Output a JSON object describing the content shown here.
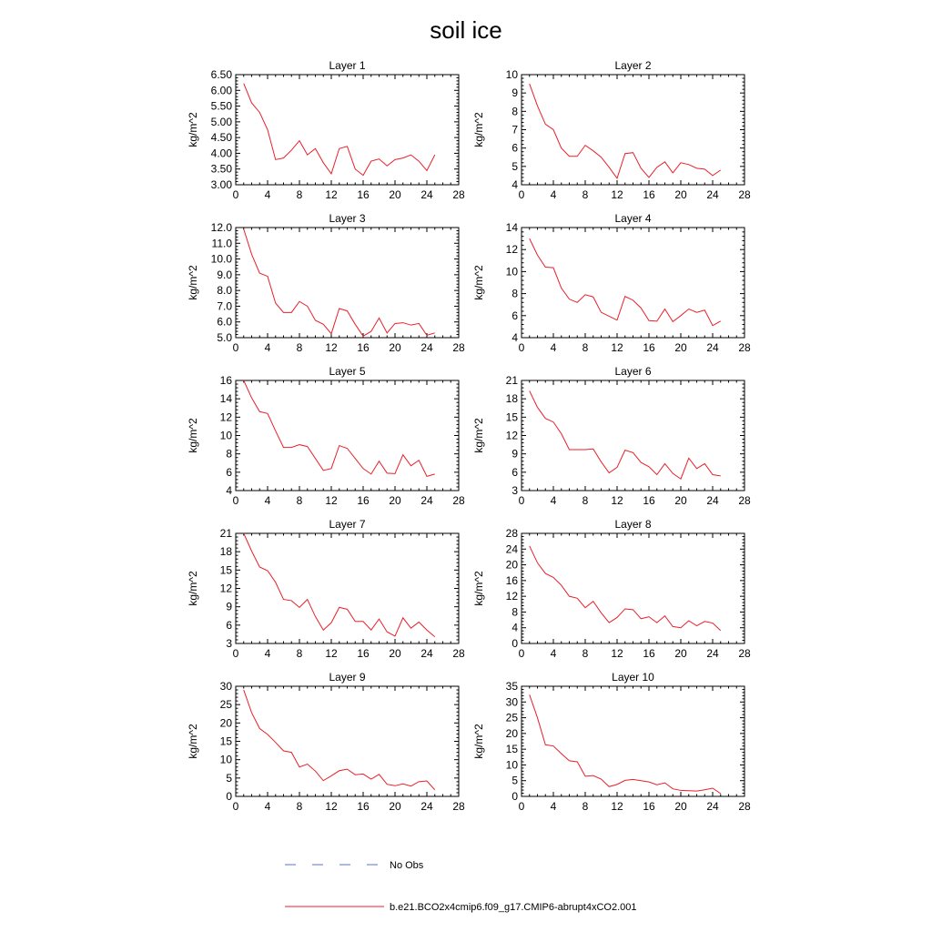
{
  "title": "soil ice",
  "legend": [
    {
      "label": "No Obs",
      "color": "#5a6fd6",
      "style": "dashed"
    },
    {
      "label": "b.e21.BCO2x4cmip6.f09_g17.CMIP6-abrupt4xCO2.001",
      "color": "#e8202a",
      "style": "solid"
    }
  ],
  "chart_data": [
    {
      "type": "line",
      "title": "Layer 1",
      "ylabel": "kg/m^2",
      "xlim": [
        0,
        28
      ],
      "xticks": [
        0,
        4,
        8,
        12,
        16,
        20,
        24,
        28
      ],
      "ylim": [
        3.0,
        6.5
      ],
      "yticks": [
        "3.00",
        "3.50",
        "4.00",
        "4.50",
        "5.00",
        "5.50",
        "6.00",
        "6.50"
      ],
      "series": [
        {
          "color": "#e8202a",
          "x": [
            1,
            2,
            3,
            4,
            5,
            6,
            7,
            8,
            9,
            10,
            11,
            12,
            13,
            14,
            15,
            16,
            17,
            18,
            19,
            20,
            21,
            22,
            23,
            24,
            25
          ],
          "y": [
            6.22,
            5.6,
            5.3,
            4.75,
            3.8,
            3.85,
            4.1,
            4.4,
            3.95,
            4.15,
            3.7,
            3.35,
            4.15,
            4.22,
            3.5,
            3.3,
            3.75,
            3.82,
            3.6,
            3.8,
            3.85,
            3.95,
            3.75,
            3.45,
            3.95
          ]
        }
      ]
    },
    {
      "type": "line",
      "title": "Layer 2",
      "ylabel": "kg/m^2",
      "xlim": [
        0,
        28
      ],
      "xticks": [
        0,
        4,
        8,
        12,
        16,
        20,
        24,
        28
      ],
      "ylim": [
        4,
        10
      ],
      "yticks": [
        "4",
        "5",
        "6",
        "7",
        "8",
        "9",
        "10"
      ],
      "series": [
        {
          "color": "#e8202a",
          "x": [
            1,
            2,
            3,
            4,
            5,
            6,
            7,
            8,
            9,
            10,
            11,
            12,
            13,
            14,
            15,
            16,
            17,
            18,
            19,
            20,
            21,
            22,
            23,
            24,
            25
          ],
          "y": [
            9.5,
            8.3,
            7.3,
            7.0,
            6.0,
            5.55,
            5.55,
            6.15,
            5.85,
            5.5,
            4.95,
            4.35,
            5.7,
            5.75,
            4.9,
            4.4,
            4.95,
            5.25,
            4.65,
            5.2,
            5.1,
            4.9,
            4.85,
            4.5,
            4.8
          ]
        }
      ]
    },
    {
      "type": "line",
      "title": "Layer 3",
      "ylabel": "kg/m^2",
      "xlim": [
        0,
        28
      ],
      "xticks": [
        0,
        4,
        8,
        12,
        16,
        20,
        24,
        28
      ],
      "ylim": [
        5.0,
        12.0
      ],
      "yticks": [
        "5.0",
        "6.0",
        "7.0",
        "8.0",
        "9.0",
        "10.0",
        "11.0",
        "12.0"
      ],
      "series": [
        {
          "color": "#e8202a",
          "x": [
            1,
            2,
            3,
            4,
            5,
            6,
            7,
            8,
            9,
            10,
            11,
            12,
            13,
            14,
            15,
            16,
            17,
            18,
            19,
            20,
            21,
            22,
            23,
            24,
            25
          ],
          "y": [
            11.9,
            10.3,
            9.1,
            8.9,
            7.2,
            6.6,
            6.6,
            7.3,
            7.0,
            6.1,
            5.85,
            5.25,
            6.85,
            6.7,
            5.85,
            5.1,
            5.4,
            6.25,
            5.3,
            5.9,
            5.95,
            5.8,
            5.9,
            5.15,
            5.3
          ]
        }
      ]
    },
    {
      "type": "line",
      "title": "Layer 4",
      "ylabel": "kg/m^2",
      "xlim": [
        0,
        28
      ],
      "xticks": [
        0,
        4,
        8,
        12,
        16,
        20,
        24,
        28
      ],
      "ylim": [
        4,
        14
      ],
      "yticks": [
        "4",
        "6",
        "8",
        "10",
        "12",
        "14"
      ],
      "series": [
        {
          "color": "#e8202a",
          "x": [
            1,
            2,
            3,
            4,
            5,
            6,
            7,
            8,
            9,
            10,
            11,
            12,
            13,
            14,
            15,
            16,
            17,
            18,
            19,
            20,
            21,
            22,
            23,
            24,
            25
          ],
          "y": [
            13.0,
            11.5,
            10.4,
            10.35,
            8.5,
            7.5,
            7.2,
            7.9,
            7.7,
            6.3,
            5.95,
            5.6,
            7.75,
            7.4,
            6.7,
            5.55,
            5.5,
            6.6,
            5.45,
            6.0,
            6.6,
            6.3,
            6.5,
            5.1,
            5.5
          ]
        }
      ]
    },
    {
      "type": "line",
      "title": "Layer 5",
      "ylabel": "kg/m^2",
      "xlim": [
        0,
        28
      ],
      "xticks": [
        0,
        4,
        8,
        12,
        16,
        20,
        24,
        28
      ],
      "ylim": [
        4,
        16
      ],
      "yticks": [
        "4",
        "6",
        "8",
        "10",
        "12",
        "14",
        "16"
      ],
      "series": [
        {
          "color": "#e8202a",
          "x": [
            1,
            2,
            3,
            4,
            5,
            6,
            7,
            8,
            9,
            10,
            11,
            12,
            13,
            14,
            15,
            16,
            17,
            18,
            19,
            20,
            21,
            22,
            23,
            24,
            25
          ],
          "y": [
            16.0,
            14.1,
            12.6,
            12.4,
            10.5,
            8.7,
            8.7,
            9.0,
            8.8,
            7.5,
            6.2,
            6.4,
            8.9,
            8.6,
            7.5,
            6.4,
            5.8,
            7.2,
            5.9,
            5.85,
            7.9,
            6.7,
            7.3,
            5.55,
            5.8
          ]
        }
      ]
    },
    {
      "type": "line",
      "title": "Layer 6",
      "ylabel": "kg/m^2",
      "xlim": [
        0,
        28
      ],
      "xticks": [
        0,
        4,
        8,
        12,
        16,
        20,
        24,
        28
      ],
      "ylim": [
        3,
        21
      ],
      "yticks": [
        "3",
        "6",
        "9",
        "12",
        "15",
        "18",
        "21"
      ],
      "series": [
        {
          "color": "#e8202a",
          "x": [
            1,
            2,
            3,
            4,
            5,
            6,
            7,
            8,
            9,
            10,
            11,
            12,
            13,
            14,
            15,
            16,
            17,
            18,
            19,
            20,
            21,
            22,
            23,
            24,
            25
          ],
          "y": [
            19.3,
            16.6,
            14.8,
            14.2,
            12.3,
            9.7,
            9.7,
            9.7,
            9.8,
            7.7,
            5.9,
            6.8,
            9.6,
            9.2,
            7.6,
            6.9,
            5.6,
            7.4,
            5.8,
            4.9,
            8.3,
            6.6,
            7.4,
            5.6,
            5.4
          ]
        }
      ]
    },
    {
      "type": "line",
      "title": "Layer 7",
      "ylabel": "kg/m^2",
      "xlim": [
        0,
        28
      ],
      "xticks": [
        0,
        4,
        8,
        12,
        16,
        20,
        24,
        28
      ],
      "ylim": [
        3,
        21
      ],
      "yticks": [
        "3",
        "6",
        "9",
        "12",
        "15",
        "18",
        "21"
      ],
      "series": [
        {
          "color": "#e8202a",
          "x": [
            1,
            2,
            3,
            4,
            5,
            6,
            7,
            8,
            9,
            10,
            11,
            12,
            13,
            14,
            15,
            16,
            17,
            18,
            19,
            20,
            21,
            22,
            23,
            24,
            25
          ],
          "y": [
            21.0,
            18.1,
            15.5,
            14.9,
            13.0,
            10.2,
            10.0,
            8.9,
            10.2,
            7.4,
            5.2,
            6.4,
            8.9,
            8.6,
            6.6,
            6.6,
            5.2,
            7.0,
            4.9,
            4.2,
            7.2,
            5.5,
            6.5,
            5.2,
            4.1
          ]
        }
      ]
    },
    {
      "type": "line",
      "title": "Layer 8",
      "ylabel": "kg/m^2",
      "xlim": [
        0,
        28
      ],
      "xticks": [
        0,
        4,
        8,
        12,
        16,
        20,
        24,
        28
      ],
      "ylim": [
        0,
        28
      ],
      "yticks": [
        "0",
        "4",
        "8",
        "12",
        "16",
        "20",
        "24",
        "28"
      ],
      "series": [
        {
          "color": "#e8202a",
          "x": [
            1,
            2,
            3,
            4,
            5,
            6,
            7,
            8,
            9,
            10,
            11,
            12,
            13,
            14,
            15,
            16,
            17,
            18,
            19,
            20,
            21,
            22,
            23,
            24,
            25
          ],
          "y": [
            24.8,
            20.5,
            17.8,
            16.8,
            14.8,
            12.0,
            11.5,
            9.1,
            10.7,
            7.8,
            5.3,
            6.6,
            8.8,
            8.6,
            6.3,
            6.8,
            5.3,
            7.0,
            4.3,
            4.0,
            5.8,
            4.5,
            5.6,
            5.2,
            3.3
          ]
        }
      ]
    },
    {
      "type": "line",
      "title": "Layer 9",
      "ylabel": "kg/m^2",
      "xlim": [
        0,
        28
      ],
      "xticks": [
        0,
        4,
        8,
        12,
        16,
        20,
        24,
        28
      ],
      "ylim": [
        0,
        30
      ],
      "yticks": [
        "0",
        "5",
        "10",
        "15",
        "20",
        "25",
        "30"
      ],
      "series": [
        {
          "color": "#e8202a",
          "x": [
            1,
            2,
            3,
            4,
            5,
            6,
            7,
            8,
            9,
            10,
            11,
            12,
            13,
            14,
            15,
            16,
            17,
            18,
            19,
            20,
            21,
            22,
            23,
            24,
            25
          ],
          "y": [
            29.0,
            22.8,
            18.5,
            16.9,
            14.7,
            12.4,
            12.0,
            8.0,
            8.8,
            6.9,
            4.3,
            5.6,
            7.0,
            7.4,
            5.9,
            6.1,
            4.7,
            6.0,
            3.3,
            2.9,
            3.4,
            2.8,
            4.0,
            4.2,
            1.8
          ]
        }
      ]
    },
    {
      "type": "line",
      "title": "Layer 10",
      "ylabel": "kg/m^2",
      "xlim": [
        0,
        28
      ],
      "xticks": [
        0,
        4,
        8,
        12,
        16,
        20,
        24,
        28
      ],
      "ylim": [
        0,
        35
      ],
      "yticks": [
        "0",
        "5",
        "10",
        "15",
        "20",
        "25",
        "30",
        "35"
      ],
      "series": [
        {
          "color": "#e8202a",
          "x": [
            1,
            2,
            3,
            4,
            5,
            6,
            7,
            8,
            9,
            10,
            11,
            12,
            13,
            14,
            15,
            16,
            17,
            18,
            19,
            20,
            21,
            22,
            23,
            24,
            25
          ],
          "y": [
            32.3,
            25.0,
            16.4,
            16.0,
            13.6,
            11.3,
            11.0,
            6.4,
            6.6,
            5.5,
            3.1,
            3.8,
            5.1,
            5.4,
            5.0,
            4.6,
            3.7,
            4.3,
            2.4,
            1.9,
            1.8,
            1.7,
            2.1,
            2.6,
            0.9
          ]
        }
      ]
    }
  ]
}
